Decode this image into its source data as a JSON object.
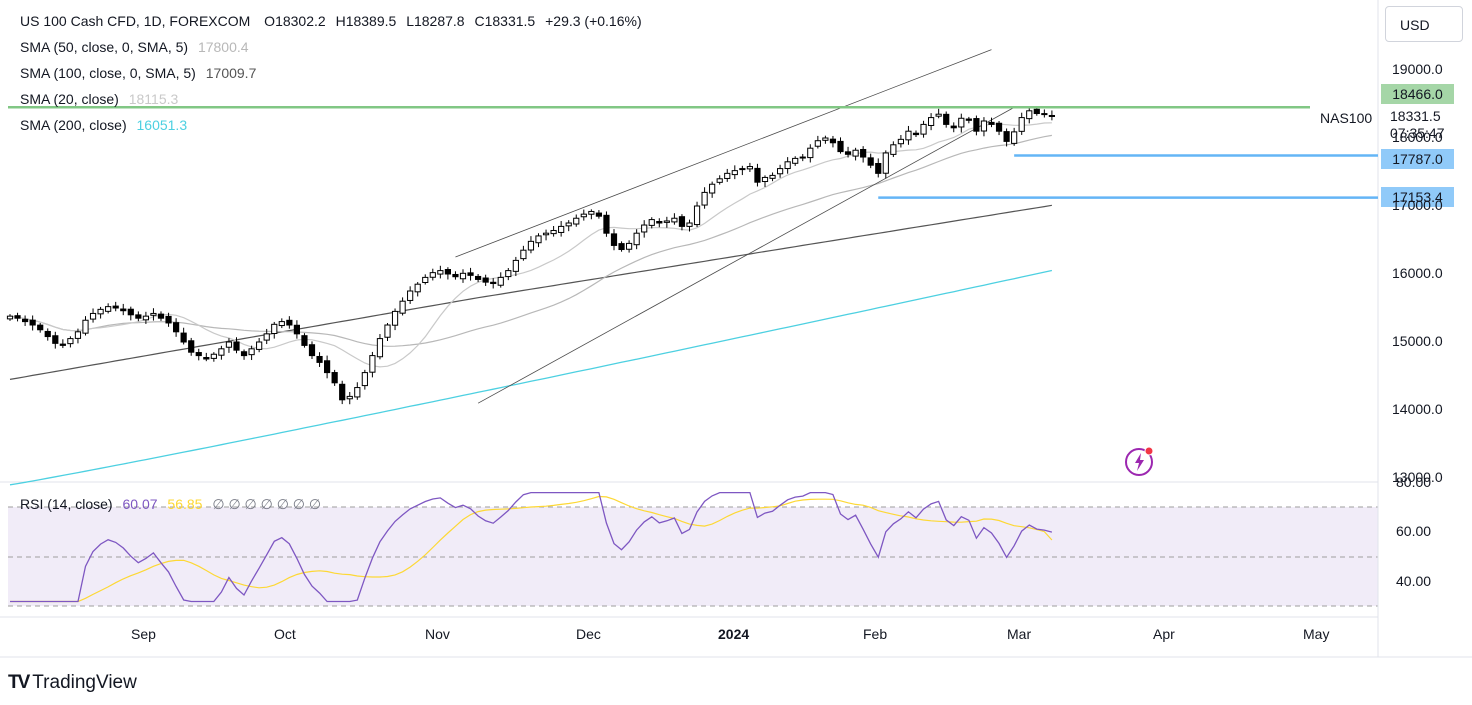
{
  "header": {
    "symbol": "US 100 Cash CFD, 1D, FOREXCOM",
    "open_label": "O",
    "open": "18302.2",
    "high_label": "H",
    "high": "18389.5",
    "low_label": "L",
    "low": "18287.8",
    "close_label": "C",
    "close": "18331.5",
    "change": "+29.3 (+0.16%)"
  },
  "indicators": [
    {
      "label": "SMA (50, close, 0, SMA, 5)",
      "value": "17800.4",
      "color": "#b8b8b8"
    },
    {
      "label": "SMA (100, close, 0, SMA, 5)",
      "value": "17009.7",
      "color": "#555555"
    },
    {
      "label": "SMA (20, close)",
      "value": "18115.3",
      "color": "#c9c9c9"
    },
    {
      "label": "SMA (200, close)",
      "value": "16051.3",
      "color": "#4dd0e1"
    }
  ],
  "currency_button": "USD",
  "symbol_tag": "NAS100",
  "last_price": "18331.5",
  "countdown": "07:35:47",
  "levels": [
    {
      "value": "18466.0",
      "color": "#81c784",
      "tag_color": "#a5d6a7"
    },
    {
      "value": "17787.0",
      "color": "#64b5f6",
      "tag_color": "#90caf9"
    },
    {
      "value": "17153.4",
      "color": "#64b5f6",
      "tag_color": "#90caf9"
    }
  ],
  "rsi_legend": {
    "label": "RSI (14, close)",
    "rsi_value": "60.07",
    "ma_value": "56.85",
    "extras": "∅ ∅ ∅ ∅ ∅ ∅ ∅",
    "rsi_color": "#7e57c2",
    "ma_color": "#fdd835"
  },
  "brand": {
    "logo": "TV",
    "name": "TradingView"
  },
  "chart_data": {
    "type": "candlestick",
    "price_axis": {
      "ticks": [
        "19000.0",
        "18000.0",
        "17000.0",
        "16000.0",
        "15000.0",
        "14000.0",
        "13000.0"
      ],
      "ylim": [
        12980,
        19500
      ]
    },
    "rsi_axis": {
      "ticks": [
        "80.00",
        "60.00",
        "40.00"
      ],
      "ylim": [
        28,
        80
      ],
      "band": [
        30,
        70
      ]
    },
    "x_axis": {
      "labels": [
        "Sep",
        "Oct",
        "Nov",
        "Dec",
        "2024",
        "Feb",
        "Mar",
        "Apr",
        "May"
      ]
    },
    "series": [
      {
        "name": "NAS100",
        "type": "ohlc",
        "close_path": [
          15380,
          15350,
          15300,
          15250,
          15180,
          15080,
          14980,
          14950,
          15050,
          15150,
          15320,
          15420,
          15480,
          15520,
          15500,
          15460,
          15400,
          15350,
          15380,
          15420,
          15350,
          15280,
          15150,
          15000,
          14850,
          14800,
          14750,
          14820,
          14900,
          15000,
          14880,
          14800,
          14900,
          15000,
          15120,
          15260,
          15300,
          15250,
          15120,
          14950,
          14800,
          14700,
          14550,
          14400,
          14150,
          14200,
          14330,
          14550,
          14800,
          15050,
          15250,
          15450,
          15600,
          15750,
          15850,
          15950,
          16020,
          16050,
          16000,
          15960,
          16010,
          15980,
          15920,
          15880,
          15860,
          15950,
          16050,
          16200,
          16350,
          16480,
          16560,
          16600,
          16640,
          16700,
          16750,
          16820,
          16880,
          16920,
          16850,
          16600,
          16420,
          16360,
          16450,
          16600,
          16720,
          16800,
          16750,
          16780,
          16820,
          16700,
          16750,
          17000,
          17200,
          17320,
          17400,
          17480,
          17520,
          17550,
          17580,
          17350,
          17420,
          17450,
          17550,
          17650,
          17700,
          17720,
          17850,
          17960,
          18000,
          17930,
          17800,
          17760,
          17820,
          17720,
          17600,
          17480,
          17780,
          17900,
          17980,
          18100,
          18050,
          18200,
          18300,
          18350,
          18200,
          18150,
          18290,
          18260,
          18100,
          18250,
          18200,
          18100,
          17950,
          18090,
          18300,
          18400,
          18360,
          18350,
          18331
        ]
      },
      {
        "name": "SMA (20, close)",
        "end": 18115.3
      },
      {
        "name": "SMA (50, close, 0, SMA, 5)",
        "end": 17800.4
      },
      {
        "name": "SMA (100, close, 0, SMA, 5)",
        "end": 17009.7
      },
      {
        "name": "SMA (200, close)",
        "end": 16051.3
      },
      {
        "name": "RSI (14, close)",
        "end": 60.07
      },
      {
        "name": "RSI MA",
        "end": 56.85
      }
    ],
    "horizontal_levels": [
      18466.0,
      17787.0,
      17153.4
    ],
    "trend_channel": {
      "upper": [
        [
          59,
          16250
        ],
        [
          130,
          19300
        ]
      ],
      "lower": [
        [
          62,
          14100
        ],
        [
          133,
          18450
        ]
      ]
    },
    "grid": false
  }
}
